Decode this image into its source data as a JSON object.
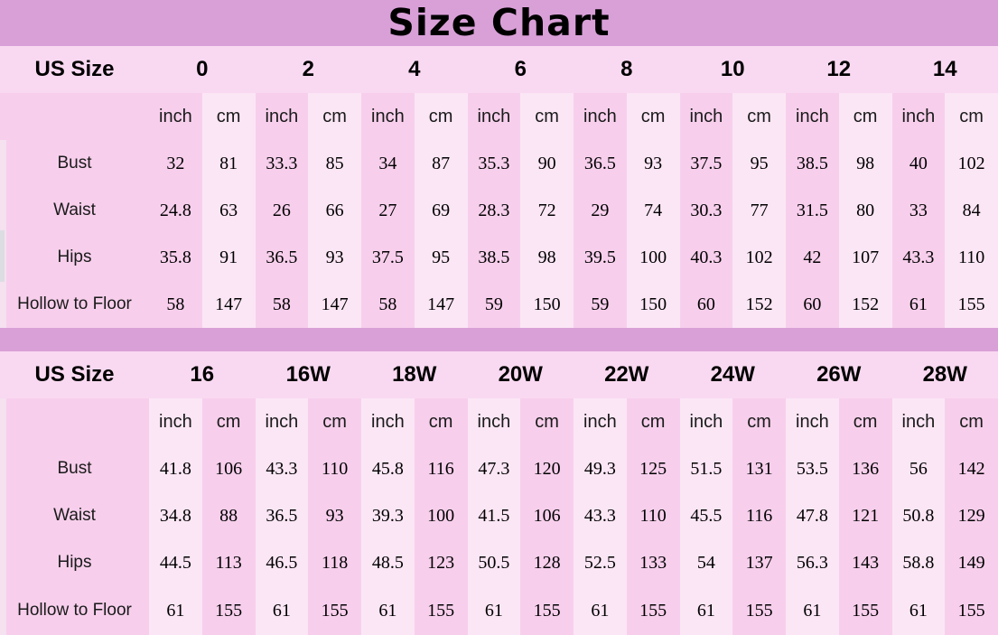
{
  "title": "Size Chart",
  "colors": {
    "band": "#d9a0d8",
    "header_row": "#f9d9f1",
    "body": "#f7cfec",
    "strip": "#fbe6f5",
    "text": "#121212",
    "teal": "#4ab795",
    "edge": "#f4e4f1"
  },
  "chart_data": [
    {
      "type": "table",
      "name": "US sizes 0-14",
      "corner_label": "US Size",
      "sizes": [
        "0",
        "2",
        "4",
        "6",
        "8",
        "10",
        "12",
        "14"
      ],
      "units": [
        "inch",
        "cm"
      ],
      "light_unit": "cm",
      "rows": [
        {
          "label": "Bust",
          "values": [
            "32",
            "81",
            "33.3",
            "85",
            "34",
            "87",
            "35.3",
            "90",
            "36.5",
            "93",
            "37.5",
            "95",
            "38.5",
            "98",
            "40",
            "102"
          ]
        },
        {
          "label": "Waist",
          "values": [
            "24.8",
            "63",
            "26",
            "66",
            "27",
            "69",
            "28.3",
            "72",
            "29",
            "74",
            "30.3",
            "77",
            "31.5",
            "80",
            "33",
            "84"
          ]
        },
        {
          "label": "Hips",
          "values": [
            "35.8",
            "91",
            "36.5",
            "93",
            "37.5",
            "95",
            "38.5",
            "98",
            "39.5",
            "100",
            "40.3",
            "102",
            "42",
            "107",
            "43.3",
            "110"
          ]
        },
        {
          "label": "Hollow to Floor",
          "values": [
            "58",
            "147",
            "58",
            "147",
            "58",
            "147",
            "59",
            "150",
            "59",
            "150",
            "60",
            "152",
            "60",
            "152",
            "61",
            "155"
          ]
        }
      ]
    },
    {
      "type": "table",
      "name": "US plus sizes 16-28W",
      "corner_label": "US Size",
      "sizes": [
        "16",
        "16W",
        "18W",
        "20W",
        "22W",
        "24W",
        "26W",
        "28W"
      ],
      "units": [
        "inch",
        "cm"
      ],
      "light_unit": "inch",
      "rows": [
        {
          "label": "Bust",
          "values": [
            "41.8",
            "106",
            "43.3",
            "110",
            "45.8",
            "116",
            "47.3",
            "120",
            "49.3",
            "125",
            "51.5",
            "131",
            "53.5",
            "136",
            "56",
            "142"
          ]
        },
        {
          "label": "Waist",
          "values": [
            "34.8",
            "88",
            "36.5",
            "93",
            "39.3",
            "100",
            "41.5",
            "106",
            "43.3",
            "110",
            "45.5",
            "116",
            "47.8",
            "121",
            "50.8",
            "129"
          ]
        },
        {
          "label": "Hips",
          "values": [
            "44.5",
            "113",
            "46.5",
            "118",
            "48.5",
            "123",
            "50.5",
            "128",
            "52.5",
            "133",
            "54",
            "137",
            "56.3",
            "143",
            "58.8",
            "149"
          ]
        },
        {
          "label": "Hollow to Floor",
          "values": [
            "61",
            "155",
            "61",
            "155",
            "61",
            "155",
            "61",
            "155",
            "61",
            "155",
            "61",
            "155",
            "61",
            "155",
            "61",
            "155"
          ]
        }
      ]
    }
  ]
}
